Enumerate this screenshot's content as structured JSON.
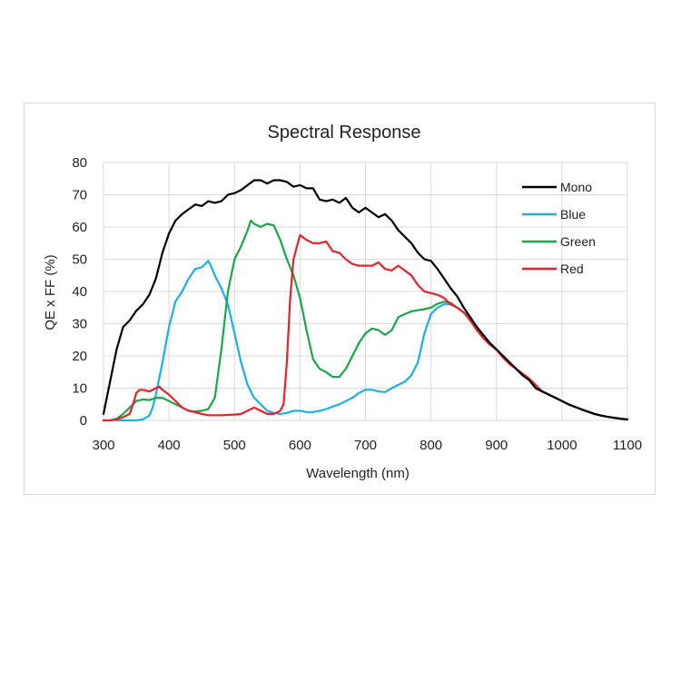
{
  "chart_data": {
    "type": "line",
    "title": "Spectral Response",
    "xlabel": "Wavelength (nm)",
    "ylabel": "QE x FF (%)",
    "xlim": [
      300,
      1100
    ],
    "ylim": [
      0,
      80
    ],
    "x_ticks": [
      "300",
      "400",
      "500",
      "600",
      "700",
      "800",
      "900",
      "1000",
      "1100"
    ],
    "y_ticks": [
      "0",
      "10",
      "20",
      "30",
      "40",
      "50",
      "60",
      "70",
      "80"
    ],
    "grid": true,
    "legend_position": "top-right",
    "series": [
      {
        "name": "Mono",
        "color": "#000000",
        "points": [
          [
            300,
            2
          ],
          [
            310,
            12
          ],
          [
            320,
            22
          ],
          [
            330,
            29
          ],
          [
            340,
            31
          ],
          [
            350,
            34
          ],
          [
            360,
            36
          ],
          [
            370,
            39
          ],
          [
            380,
            44
          ],
          [
            390,
            52
          ],
          [
            400,
            58
          ],
          [
            410,
            62
          ],
          [
            420,
            64
          ],
          [
            430,
            65.5
          ],
          [
            440,
            67
          ],
          [
            450,
            66.5
          ],
          [
            460,
            68
          ],
          [
            470,
            67.5
          ],
          [
            480,
            68
          ],
          [
            490,
            70
          ],
          [
            500,
            70.5
          ],
          [
            510,
            71.5
          ],
          [
            520,
            73
          ],
          [
            530,
            74.5
          ],
          [
            540,
            74.5
          ],
          [
            550,
            73.5
          ],
          [
            560,
            74.5
          ],
          [
            570,
            74.5
          ],
          [
            580,
            74
          ],
          [
            590,
            72.5
          ],
          [
            600,
            73
          ],
          [
            610,
            72
          ],
          [
            620,
            72
          ],
          [
            630,
            68.5
          ],
          [
            640,
            68
          ],
          [
            650,
            68.5
          ],
          [
            660,
            67.5
          ],
          [
            670,
            69
          ],
          [
            680,
            66
          ],
          [
            690,
            64.5
          ],
          [
            700,
            66
          ],
          [
            710,
            64.5
          ],
          [
            720,
            63
          ],
          [
            730,
            64
          ],
          [
            740,
            62
          ],
          [
            750,
            59
          ],
          [
            760,
            57
          ],
          [
            770,
            55
          ],
          [
            780,
            52
          ],
          [
            790,
            50
          ],
          [
            800,
            49.5
          ],
          [
            810,
            47
          ],
          [
            820,
            44
          ],
          [
            830,
            41
          ],
          [
            840,
            38.5
          ],
          [
            850,
            35
          ],
          [
            860,
            32
          ],
          [
            870,
            29
          ],
          [
            880,
            26.5
          ],
          [
            890,
            24
          ],
          [
            900,
            22
          ],
          [
            910,
            20
          ],
          [
            920,
            18
          ],
          [
            930,
            16
          ],
          [
            940,
            14
          ],
          [
            950,
            12.5
          ],
          [
            960,
            10
          ],
          [
            970,
            9
          ],
          [
            980,
            8
          ],
          [
            990,
            7
          ],
          [
            1000,
            6
          ],
          [
            1010,
            5
          ],
          [
            1020,
            4.2
          ],
          [
            1030,
            3.4
          ],
          [
            1040,
            2.7
          ],
          [
            1050,
            2
          ],
          [
            1060,
            1.5
          ],
          [
            1070,
            1.1
          ],
          [
            1080,
            0.8
          ],
          [
            1090,
            0.5
          ],
          [
            1100,
            0.3
          ]
        ]
      },
      {
        "name": "Blue",
        "color": "#1ab0e8",
        "points": [
          [
            320,
            0
          ],
          [
            330,
            0
          ],
          [
            340,
            0
          ],
          [
            350,
            0
          ],
          [
            360,
            0.3
          ],
          [
            370,
            1.5
          ],
          [
            375,
            4
          ],
          [
            380,
            8
          ],
          [
            390,
            18
          ],
          [
            400,
            29
          ],
          [
            410,
            37
          ],
          [
            420,
            40
          ],
          [
            430,
            44
          ],
          [
            440,
            47
          ],
          [
            450,
            47.5
          ],
          [
            460,
            49.5
          ],
          [
            465,
            47.5
          ],
          [
            470,
            45
          ],
          [
            480,
            41
          ],
          [
            490,
            36
          ],
          [
            500,
            27
          ],
          [
            510,
            18
          ],
          [
            520,
            11
          ],
          [
            530,
            7
          ],
          [
            540,
            5
          ],
          [
            550,
            3
          ],
          [
            560,
            2.3
          ],
          [
            570,
            2
          ],
          [
            580,
            2.3
          ],
          [
            590,
            3
          ],
          [
            600,
            3
          ],
          [
            610,
            2.6
          ],
          [
            620,
            2.6
          ],
          [
            630,
            3
          ],
          [
            640,
            3.5
          ],
          [
            650,
            4.3
          ],
          [
            660,
            5
          ],
          [
            670,
            6
          ],
          [
            680,
            7
          ],
          [
            690,
            8.5
          ],
          [
            700,
            9.5
          ],
          [
            710,
            9.5
          ],
          [
            720,
            9
          ],
          [
            730,
            8.8
          ],
          [
            740,
            10
          ],
          [
            750,
            11
          ],
          [
            760,
            12
          ],
          [
            770,
            14
          ],
          [
            780,
            18
          ],
          [
            790,
            27
          ],
          [
            800,
            33
          ],
          [
            810,
            35
          ],
          [
            820,
            36
          ],
          [
            830,
            36
          ],
          [
            840,
            35
          ],
          [
            850,
            33.5
          ],
          [
            860,
            32
          ],
          [
            870,
            29
          ],
          [
            880,
            26.5
          ],
          [
            890,
            24
          ],
          [
            900,
            22
          ],
          [
            910,
            20
          ],
          [
            920,
            18
          ],
          [
            930,
            16
          ],
          [
            940,
            14
          ],
          [
            950,
            12.5
          ],
          [
            960,
            10
          ],
          [
            970,
            9
          ],
          [
            980,
            8
          ],
          [
            990,
            7
          ],
          [
            1000,
            6
          ],
          [
            1010,
            5
          ],
          [
            1020,
            4.2
          ],
          [
            1030,
            3.4
          ],
          [
            1040,
            2.7
          ],
          [
            1050,
            2
          ],
          [
            1060,
            1.5
          ],
          [
            1070,
            1.1
          ],
          [
            1080,
            0.8
          ],
          [
            1090,
            0.5
          ],
          [
            1100,
            0.3
          ]
        ]
      },
      {
        "name": "Green",
        "color": "#1aa64a",
        "points": [
          [
            300,
            0
          ],
          [
            310,
            0
          ],
          [
            320,
            0.5
          ],
          [
            330,
            2
          ],
          [
            340,
            4
          ],
          [
            350,
            6
          ],
          [
            360,
            6.5
          ],
          [
            370,
            6.3
          ],
          [
            380,
            7
          ],
          [
            390,
            7
          ],
          [
            400,
            6
          ],
          [
            410,
            5
          ],
          [
            420,
            4
          ],
          [
            430,
            3
          ],
          [
            440,
            2.8
          ],
          [
            450,
            3
          ],
          [
            460,
            3.5
          ],
          [
            470,
            7
          ],
          [
            480,
            22
          ],
          [
            490,
            40
          ],
          [
            500,
            50
          ],
          [
            510,
            54
          ],
          [
            520,
            59
          ],
          [
            525,
            62
          ],
          [
            530,
            61
          ],
          [
            540,
            60
          ],
          [
            550,
            61
          ],
          [
            560,
            60.5
          ],
          [
            570,
            56
          ],
          [
            580,
            50
          ],
          [
            590,
            45
          ],
          [
            600,
            38
          ],
          [
            610,
            28
          ],
          [
            620,
            19
          ],
          [
            630,
            16
          ],
          [
            640,
            15
          ],
          [
            650,
            13.5
          ],
          [
            660,
            13.5
          ],
          [
            670,
            16
          ],
          [
            680,
            20
          ],
          [
            690,
            24
          ],
          [
            700,
            27
          ],
          [
            710,
            28.5
          ],
          [
            720,
            28
          ],
          [
            730,
            26.5
          ],
          [
            740,
            28
          ],
          [
            750,
            32
          ],
          [
            760,
            33
          ],
          [
            770,
            33.8
          ],
          [
            780,
            34.2
          ],
          [
            790,
            34.5
          ],
          [
            800,
            35
          ],
          [
            810,
            36.2
          ],
          [
            820,
            36.8
          ],
          [
            830,
            36.5
          ],
          [
            840,
            35
          ],
          [
            850,
            33.5
          ],
          [
            860,
            31.5
          ],
          [
            870,
            29
          ],
          [
            880,
            26.5
          ],
          [
            890,
            24
          ],
          [
            900,
            22
          ],
          [
            910,
            20
          ],
          [
            920,
            18
          ],
          [
            930,
            16
          ],
          [
            940,
            14
          ],
          [
            950,
            12.5
          ],
          [
            960,
            10
          ],
          [
            970,
            9
          ],
          [
            980,
            8
          ],
          [
            990,
            7
          ],
          [
            1000,
            6
          ],
          [
            1010,
            5
          ],
          [
            1020,
            4.2
          ],
          [
            1030,
            3.4
          ],
          [
            1040,
            2.7
          ],
          [
            1050,
            2
          ],
          [
            1060,
            1.5
          ],
          [
            1070,
            1.1
          ],
          [
            1080,
            0.8
          ],
          [
            1090,
            0.5
          ],
          [
            1100,
            0.3
          ]
        ]
      },
      {
        "name": "Red",
        "color": "#e8202a",
        "points": [
          [
            300,
            0
          ],
          [
            310,
            0
          ],
          [
            320,
            0.3
          ],
          [
            330,
            1
          ],
          [
            340,
            2
          ],
          [
            345,
            5
          ],
          [
            350,
            8.5
          ],
          [
            355,
            9.5
          ],
          [
            360,
            9.5
          ],
          [
            370,
            9
          ],
          [
            380,
            10
          ],
          [
            385,
            10.5
          ],
          [
            390,
            9.5
          ],
          [
            400,
            8
          ],
          [
            410,
            6
          ],
          [
            420,
            4
          ],
          [
            430,
            3
          ],
          [
            440,
            2.5
          ],
          [
            450,
            2
          ],
          [
            460,
            1.6
          ],
          [
            470,
            1.6
          ],
          [
            480,
            1.6
          ],
          [
            490,
            1.7
          ],
          [
            500,
            1.8
          ],
          [
            510,
            2
          ],
          [
            520,
            3
          ],
          [
            530,
            4
          ],
          [
            540,
            3
          ],
          [
            550,
            2
          ],
          [
            560,
            2
          ],
          [
            570,
            3
          ],
          [
            575,
            5
          ],
          [
            580,
            18
          ],
          [
            585,
            38
          ],
          [
            590,
            50
          ],
          [
            600,
            57.5
          ],
          [
            610,
            56
          ],
          [
            620,
            55
          ],
          [
            630,
            55
          ],
          [
            640,
            55.5
          ],
          [
            650,
            52.5
          ],
          [
            660,
            52
          ],
          [
            670,
            50
          ],
          [
            680,
            48.5
          ],
          [
            690,
            48
          ],
          [
            700,
            48
          ],
          [
            710,
            48
          ],
          [
            720,
            49
          ],
          [
            730,
            47
          ],
          [
            740,
            46.5
          ],
          [
            750,
            48
          ],
          [
            760,
            46.5
          ],
          [
            770,
            45
          ],
          [
            780,
            42
          ],
          [
            790,
            40
          ],
          [
            800,
            39.5
          ],
          [
            810,
            39
          ],
          [
            820,
            38
          ],
          [
            830,
            36
          ],
          [
            840,
            35
          ],
          [
            850,
            33.5
          ],
          [
            860,
            31
          ],
          [
            870,
            28
          ],
          [
            880,
            25.5
          ],
          [
            890,
            23.5
          ],
          [
            900,
            22
          ],
          [
            910,
            19.5
          ],
          [
            920,
            17.5
          ],
          [
            930,
            16
          ],
          [
            940,
            14.5
          ],
          [
            950,
            13
          ],
          [
            960,
            11
          ],
          [
            970,
            9
          ],
          [
            980,
            8
          ],
          [
            990,
            7
          ],
          [
            1000,
            6
          ],
          [
            1010,
            5
          ],
          [
            1020,
            4.2
          ],
          [
            1030,
            3.4
          ],
          [
            1040,
            2.7
          ],
          [
            1050,
            2
          ],
          [
            1060,
            1.5
          ],
          [
            1070,
            1.1
          ],
          [
            1080,
            0.8
          ],
          [
            1090,
            0.5
          ],
          [
            1100,
            0.3
          ]
        ]
      }
    ]
  }
}
